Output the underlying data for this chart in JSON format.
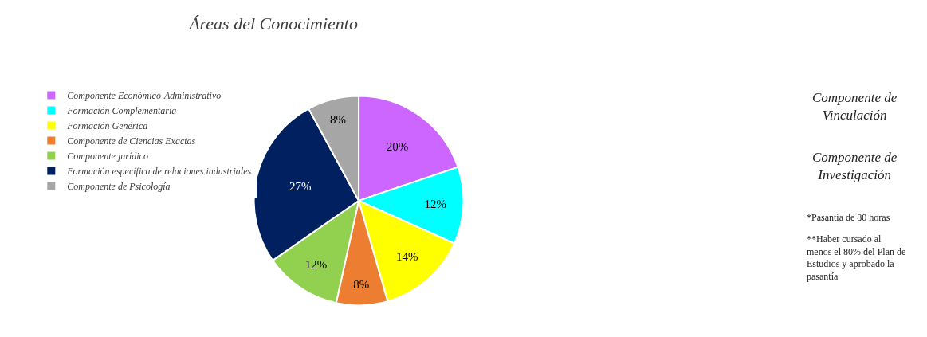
{
  "chart_data": {
    "type": "pie",
    "title": "Áreas del Conocimiento",
    "categories": [
      "Componente Económico-Administrativo",
      "Formación Complementaria",
      "Formación Genérica",
      "Componente de Ciencias Exactas",
      "Componente jurídico",
      "Formación específica de relaciones industriales",
      "Componente de Psicología"
    ],
    "values": [
      20,
      12,
      14,
      8,
      12,
      27,
      8
    ],
    "colors": [
      "#cc66ff",
      "#00ffff",
      "#ffff00",
      "#ed7d31",
      "#92d050",
      "#002060",
      "#a6a6a6"
    ],
    "value_labels": [
      "20%",
      "12%",
      "14%",
      "8%",
      "12%",
      "27%",
      "8%"
    ],
    "legend": "left",
    "annotations": [
      "Componente de\nVinculación",
      "Componente de\nInvestigación",
      "*Pasantía de 80 horas",
      "**Haber cursado al\nmenos el 80% del Plan de\nEstudios y aprobado la\npasantía"
    ]
  }
}
